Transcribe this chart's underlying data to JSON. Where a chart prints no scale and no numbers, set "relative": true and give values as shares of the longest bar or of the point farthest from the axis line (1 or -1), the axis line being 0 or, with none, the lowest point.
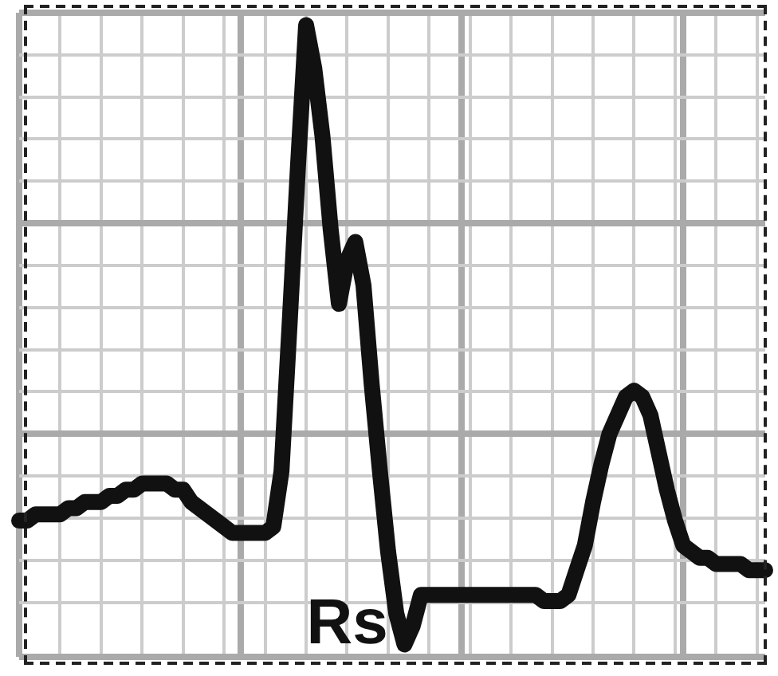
{
  "chart_data": {
    "type": "line",
    "relative": true,
    "color": "#111111",
    "grid": true,
    "marker": "none",
    "line_style": "solid",
    "annotations": [
      "Rs"
    ],
    "categories": [
      null,
      null,
      null,
      null,
      null,
      null,
      null,
      null,
      null,
      null,
      null,
      null,
      null,
      null,
      null,
      null,
      null,
      null,
      null,
      null,
      null,
      null,
      null,
      null,
      null,
      null,
      null,
      null,
      null,
      null,
      null,
      null,
      null,
      null,
      null,
      null,
      null,
      null,
      null,
      null,
      null,
      null,
      null,
      null,
      null,
      null,
      null,
      null,
      null,
      null,
      null,
      null,
      null,
      null,
      null,
      null,
      null,
      null,
      null,
      null,
      null,
      null,
      null,
      null,
      null,
      null,
      null,
      null,
      null,
      null,
      null,
      null,
      null,
      null,
      null,
      null,
      null,
      null,
      null,
      null,
      null,
      null,
      null,
      null,
      null,
      null,
      null,
      null,
      null,
      null,
      null,
      null
    ],
    "values": [
      0.2,
      0.2,
      0.21,
      0.21,
      0.21,
      0.21,
      0.22,
      0.22,
      0.23,
      0.23,
      0.23,
      0.24,
      0.24,
      0.25,
      0.25,
      0.26,
      0.26,
      0.26,
      0.26,
      0.25,
      0.25,
      0.23,
      0.22,
      0.21,
      0.2,
      0.19,
      0.18,
      0.18,
      0.18,
      0.18,
      0.18,
      0.19,
      0.28,
      0.52,
      0.77,
      1,
      0.93,
      0.82,
      0.67,
      0.55,
      0.62,
      0.65,
      0.58,
      0.42,
      0.28,
      0.15,
      0.05,
      0,
      0.03,
      0.08,
      0.08,
      0.08,
      0.08,
      0.08,
      0.08,
      0.08,
      0.08,
      0.08,
      0.08,
      0.08,
      0.08,
      0.08,
      0.08,
      0.08,
      0.07,
      0.07,
      0.07,
      0.08,
      0.12,
      0.16,
      0.23,
      0.29,
      0.34,
      0.37,
      0.4,
      0.41,
      0.4,
      0.37,
      0.31,
      0.25,
      0.2,
      0.16,
      0.15,
      0.14,
      0.14,
      0.13,
      0.13,
      0.13,
      0.13,
      0.12,
      0.12,
      0.12
    ]
  }
}
